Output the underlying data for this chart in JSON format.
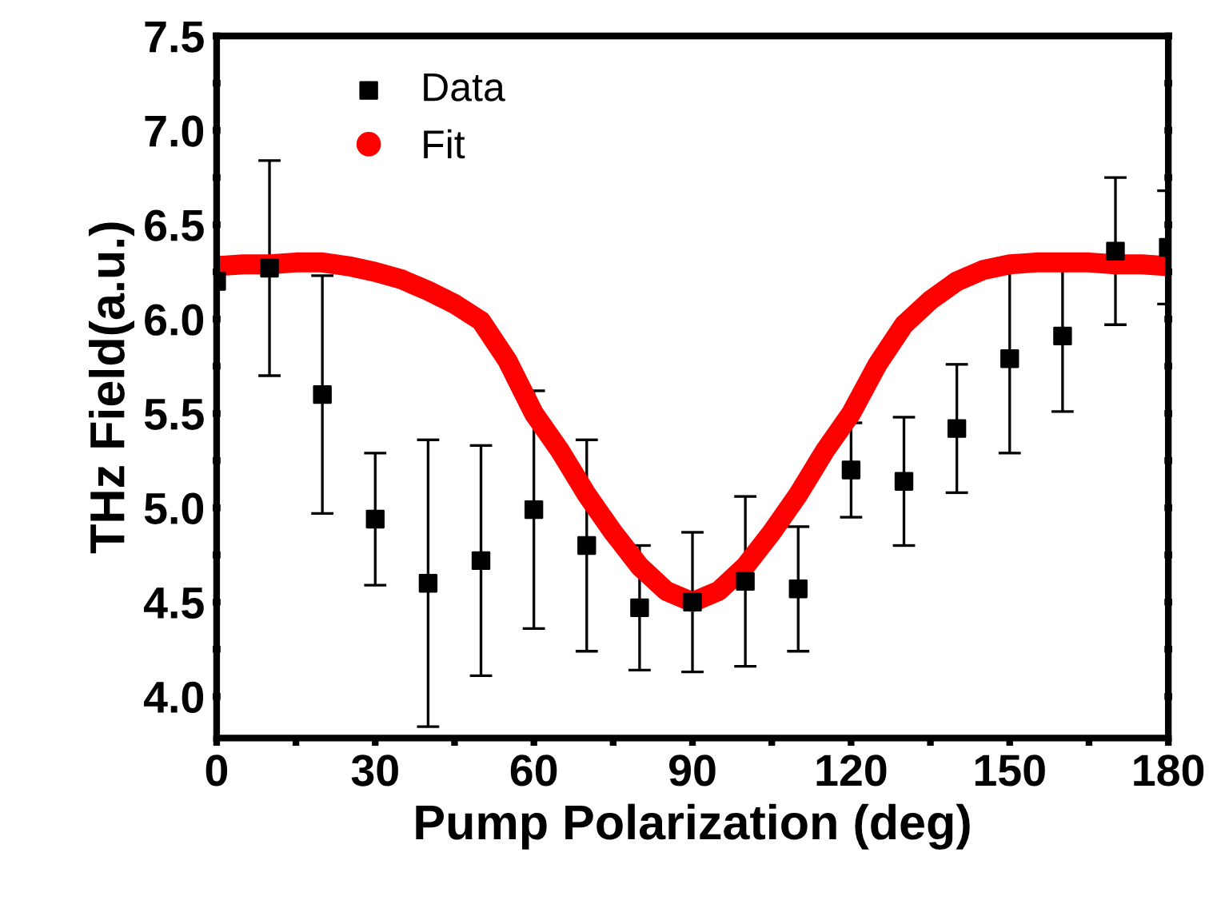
{
  "chart_data": {
    "type": "scatter",
    "xlabel": "Pump Polarization (deg)",
    "ylabel": "THz Field(a.u.)",
    "xlim": [
      0,
      180
    ],
    "ylim": [
      3.78,
      7.5
    ],
    "xticks": [
      0,
      {
        "value": 15,
        "label": null
      },
      30,
      {
        "value": 45,
        "label": null
      },
      60,
      {
        "value": 75,
        "label": null
      },
      90,
      {
        "value": 105,
        "label": null
      },
      120,
      {
        "value": 135,
        "label": null
      },
      150,
      {
        "value": 165,
        "label": null
      },
      180
    ],
    "yticks": [
      {
        "value": 4.0,
        "label": "4.0"
      },
      {
        "value": 4.25,
        "label": null
      },
      {
        "value": 4.5,
        "label": "4.5"
      },
      {
        "value": 4.75,
        "label": null
      },
      {
        "value": 5.0,
        "label": "5.0"
      },
      {
        "value": 5.25,
        "label": null
      },
      {
        "value": 5.5,
        "label": "5.5"
      },
      {
        "value": 5.75,
        "label": null
      },
      {
        "value": 6.0,
        "label": "6.0"
      },
      {
        "value": 6.25,
        "label": null
      },
      {
        "value": 6.5,
        "label": "6.5"
      },
      {
        "value": 6.75,
        "label": null
      },
      {
        "value": 7.0,
        "label": "7.0"
      },
      {
        "value": 7.25,
        "label": null
      },
      {
        "value": 7.5,
        "label": "7.5"
      }
    ],
    "legend": "top left",
    "grid": false,
    "series": [
      {
        "name": "Data",
        "marker": "square",
        "color": "#000000",
        "x": [
          0,
          10,
          20,
          30,
          40,
          50,
          60,
          70,
          80,
          90,
          100,
          110,
          120,
          130,
          140,
          150,
          160,
          170,
          180
        ],
        "values": [
          6.2,
          6.27,
          5.6,
          4.94,
          4.6,
          4.72,
          4.99,
          4.8,
          4.47,
          4.5,
          4.61,
          4.57,
          5.2,
          5.14,
          5.42,
          5.79,
          5.91,
          6.36,
          6.38
        ],
        "errors": [
          null,
          0.57,
          0.63,
          0.35,
          0.76,
          0.61,
          0.63,
          0.56,
          0.33,
          0.37,
          0.45,
          0.33,
          0.25,
          0.34,
          0.34,
          0.5,
          0.4,
          0.39,
          0.3
        ]
      },
      {
        "name": "Fit",
        "type": "line",
        "marker": "circle",
        "color": "#ff0000",
        "x": [
          0,
          5,
          10,
          15,
          20,
          25,
          30,
          35,
          40,
          45,
          50,
          55,
          60,
          65,
          70,
          75,
          80,
          85,
          90,
          95,
          100,
          105,
          110,
          115,
          120,
          125,
          130,
          135,
          140,
          145,
          150,
          155,
          160,
          165,
          170,
          175,
          180
        ],
        "values": [
          6.28,
          6.29,
          6.29,
          6.3,
          6.3,
          6.28,
          6.25,
          6.21,
          6.15,
          6.08,
          5.99,
          5.78,
          5.5,
          5.3,
          5.07,
          4.87,
          4.69,
          4.56,
          4.5,
          4.56,
          4.69,
          4.87,
          5.07,
          5.3,
          5.5,
          5.76,
          5.97,
          6.1,
          6.2,
          6.26,
          6.29,
          6.3,
          6.3,
          6.3,
          6.29,
          6.29,
          6.28
        ]
      }
    ]
  }
}
